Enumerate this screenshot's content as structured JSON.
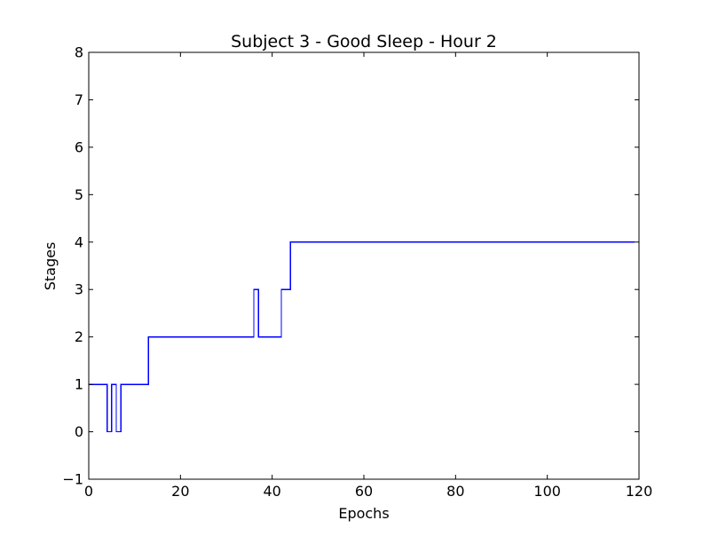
{
  "chart_data": {
    "type": "line",
    "title": "Subject 3 - Good Sleep - Hour 2",
    "xlabel": "Epochs",
    "ylabel": "Stages",
    "xlim": [
      0,
      120
    ],
    "ylim": [
      -1,
      8
    ],
    "xticks": [
      0,
      20,
      40,
      60,
      80,
      100,
      120
    ],
    "yticks": [
      -1,
      0,
      1,
      2,
      3,
      4,
      5,
      6,
      7,
      8
    ],
    "xtick_labels": [
      "0",
      "20",
      "40",
      "60",
      "80",
      "100",
      "120"
    ],
    "ytick_labels": [
      "−1",
      "0",
      "1",
      "2",
      "3",
      "4",
      "5",
      "6",
      "7",
      "8"
    ],
    "grid": false,
    "legend": false,
    "step": "post",
    "series": [
      {
        "color": "#0000ff",
        "x": [
          0,
          4,
          5,
          6,
          7,
          13,
          36,
          37,
          42,
          44,
          119
        ],
        "y": [
          1,
          0,
          1,
          0,
          1,
          2,
          3,
          2,
          3,
          4,
          4
        ]
      }
    ]
  }
}
